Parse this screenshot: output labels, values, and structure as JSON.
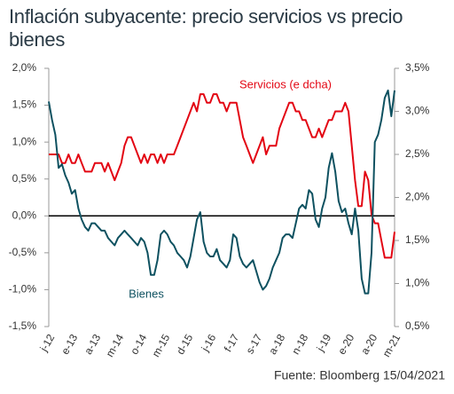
{
  "chart_data": {
    "type": "line",
    "title": "Inflación subyacente: precio servicios vs precio bienes",
    "source": "Fuente: Bloomberg 15/04/2021",
    "categories": [
      "j-12",
      null,
      null,
      null,
      null,
      null,
      null,
      "e-13",
      null,
      null,
      null,
      null,
      null,
      null,
      "a-13",
      null,
      null,
      null,
      null,
      null,
      null,
      "m-14",
      null,
      null,
      null,
      null,
      null,
      null,
      "o-14",
      null,
      null,
      null,
      null,
      null,
      null,
      "m-15",
      null,
      null,
      null,
      null,
      null,
      null,
      "d-15",
      null,
      null,
      null,
      null,
      null,
      null,
      "j-16",
      null,
      null,
      null,
      null,
      null,
      null,
      "f-17",
      null,
      null,
      null,
      null,
      null,
      null,
      "s-17",
      null,
      null,
      null,
      null,
      null,
      null,
      "a-18",
      null,
      null,
      null,
      null,
      null,
      null,
      "n-18",
      null,
      null,
      null,
      null,
      null,
      null,
      "j-19",
      null,
      null,
      null,
      null,
      null,
      null,
      "e-20",
      null,
      null,
      null,
      null,
      null,
      null,
      "a-20",
      null,
      null,
      null,
      null,
      null,
      null,
      "m-21"
    ],
    "series": [
      {
        "name": "Servicios (e dcha)",
        "color": "#e30613",
        "axis": "y2",
        "values": [
          2.5,
          2.5,
          2.5,
          2.5,
          2.4,
          2.4,
          2.5,
          2.4,
          2.4,
          2.5,
          2.4,
          2.3,
          2.3,
          2.3,
          2.4,
          2.4,
          2.4,
          2.3,
          2.4,
          2.3,
          2.2,
          2.3,
          2.4,
          2.6,
          2.7,
          2.7,
          2.6,
          2.5,
          2.4,
          2.5,
          2.4,
          2.5,
          2.5,
          2.4,
          2.5,
          2.4,
          2.5,
          2.5,
          2.5,
          2.6,
          2.7,
          2.8,
          2.9,
          3.0,
          3.1,
          3.0,
          3.2,
          3.2,
          3.1,
          3.1,
          3.2,
          3.2,
          3.1,
          3.1,
          3.0,
          3.1,
          3.1,
          3.1,
          2.9,
          2.7,
          2.6,
          2.5,
          2.4,
          2.5,
          2.6,
          2.7,
          2.5,
          2.6,
          2.6,
          2.6,
          2.8,
          2.9,
          3.0,
          3.1,
          3.1,
          3.0,
          3.0,
          2.9,
          2.9,
          2.8,
          2.7,
          2.7,
          2.8,
          2.7,
          2.8,
          2.9,
          2.9,
          3.0,
          3.0,
          3.0,
          3.1,
          3.0,
          2.6,
          2.2,
          1.9,
          1.9,
          2.3,
          2.2,
          1.8,
          1.7,
          1.7,
          1.5,
          1.3,
          1.3,
          1.3,
          1.6
        ]
      },
      {
        "name": "Bienes",
        "color": "#0e5160",
        "values": [
          1.55,
          1.3,
          1.1,
          0.65,
          0.7,
          0.55,
          0.45,
          0.3,
          0.35,
          0.1,
          -0.05,
          -0.15,
          -0.2,
          -0.1,
          -0.1,
          -0.15,
          -0.2,
          -0.2,
          -0.3,
          -0.35,
          -0.4,
          -0.3,
          -0.25,
          -0.2,
          -0.25,
          -0.3,
          -0.35,
          -0.4,
          -0.3,
          -0.35,
          -0.5,
          -0.8,
          -0.8,
          -0.6,
          -0.25,
          -0.2,
          -0.25,
          -0.35,
          -0.4,
          -0.5,
          -0.55,
          -0.6,
          -0.7,
          -0.55,
          -0.3,
          -0.05,
          0.05,
          -0.35,
          -0.5,
          -0.55,
          -0.55,
          -0.45,
          -0.6,
          -0.65,
          -0.7,
          -0.6,
          -0.25,
          -0.3,
          -0.55,
          -0.65,
          -0.7,
          -0.65,
          -0.6,
          -0.75,
          -0.9,
          -1.0,
          -0.95,
          -0.85,
          -0.7,
          -0.6,
          -0.5,
          -0.3,
          -0.25,
          -0.25,
          -0.3,
          -0.1,
          0.1,
          0.15,
          0.1,
          0.35,
          0.3,
          -0.05,
          -0.15,
          0.1,
          0.25,
          0.65,
          0.85,
          0.6,
          0.2,
          0.05,
          0.1,
          -0.1,
          -0.25,
          0.1,
          -0.2,
          -0.85,
          -1.05,
          -1.05,
          -0.5,
          1.0,
          1.1,
          1.3,
          1.6,
          1.7,
          1.35,
          1.7
        ]
      }
    ],
    "ylim": [
      -1.5,
      2.0
    ],
    "yticks": [
      {
        "value": -1.5,
        "label": "-1,5%"
      },
      {
        "value": -1.0,
        "label": "-1,0%"
      },
      {
        "value": -0.5,
        "label": "-0,5%"
      },
      {
        "value": 0,
        "label": "0,0%"
      },
      {
        "value": 0.5,
        "label": "0,5%"
      },
      {
        "value": 1.0,
        "label": "1,0%"
      },
      {
        "value": 1.5,
        "label": "1,5%"
      },
      {
        "value": 2.0,
        "label": "2,0%"
      }
    ],
    "y2lim": [
      0.5,
      3.5
    ],
    "y2ticks": [
      {
        "value": 0.5,
        "label": "0,5%"
      },
      {
        "value": 1.0,
        "label": "1,0%"
      },
      {
        "value": 1.5,
        "label": "1,5%"
      },
      {
        "value": 2.0,
        "label": "2,0%"
      },
      {
        "value": 2.5,
        "label": "2,5%"
      },
      {
        "value": 3.0,
        "label": "3,0%"
      },
      {
        "value": 3.5,
        "label": "3,5%"
      }
    ],
    "grid": false
  }
}
